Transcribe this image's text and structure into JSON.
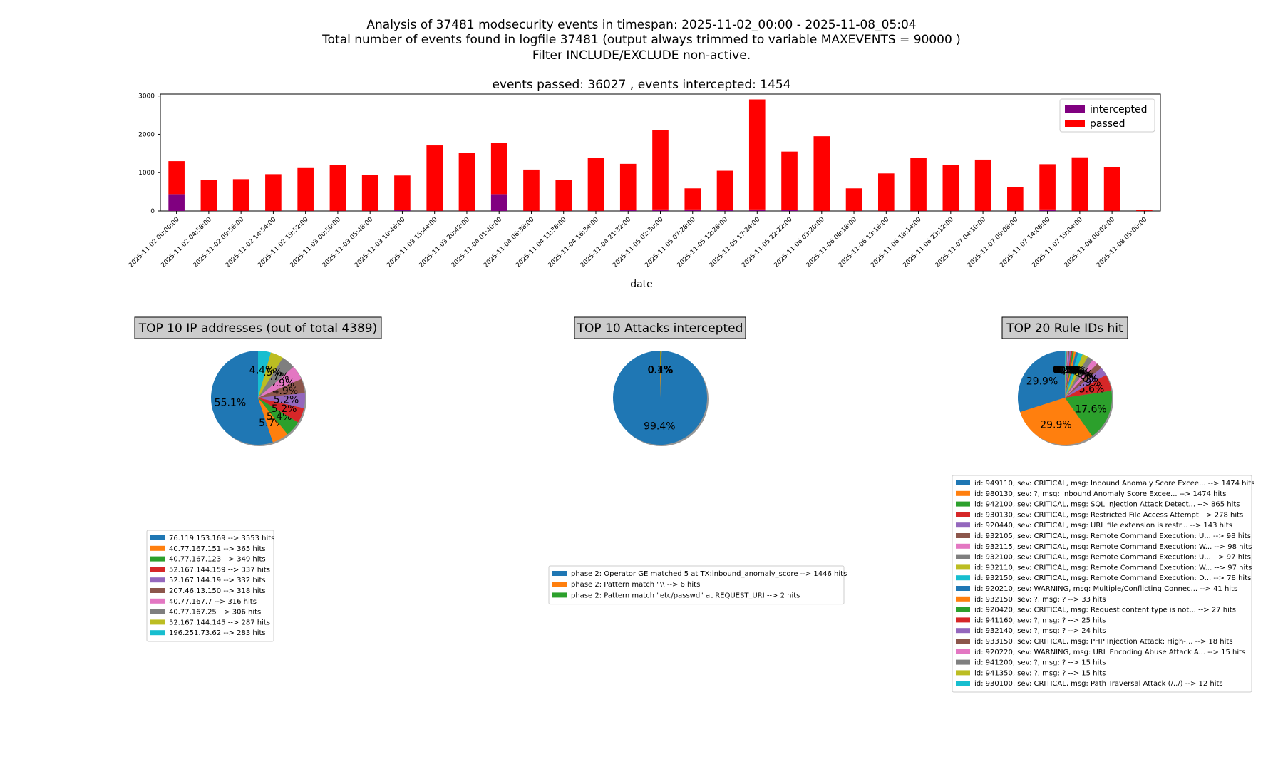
{
  "header": {
    "line1": "Analysis of 37481 modsecurity events in timespan: 2025-11-02_00:00 - 2025-11-08_05:04",
    "line2": "Total number of events found in logfile 37481 (output always trimmed to variable MAXEVENTS = 90000 )",
    "line3": "Filter INCLUDE/EXCLUDE non-active."
  },
  "colors": {
    "passed": "#ff0000",
    "intercepted": "#800080",
    "palette": [
      "#1f77b4",
      "#ff7f0e",
      "#2ca02c",
      "#d62728",
      "#9467bd",
      "#8c564b",
      "#e377c2",
      "#7f7f7f",
      "#bcbd22",
      "#17becf"
    ]
  },
  "chart_data": [
    {
      "type": "bar",
      "stacked": true,
      "title": "events passed: 36027 , events intercepted: 1454",
      "xlabel": "date",
      "ylabel": "",
      "ylim": [
        0,
        3050
      ],
      "yticks": [
        0,
        1000,
        2000,
        3000
      ],
      "legend": "top-right",
      "categories": [
        "2025-11-02 00:00:00",
        "2025-11-02 04:58:00",
        "2025-11-02 09:56:00",
        "2025-11-02 14:54:00",
        "2025-11-02 19:52:00",
        "2025-11-03 00:50:00",
        "2025-11-03 05:48:00",
        "2025-11-03 10:46:00",
        "2025-11-03 15:44:00",
        "2025-11-03 20:42:00",
        "2025-11-04 01:40:00",
        "2025-11-04 06:38:00",
        "2025-11-04 11:36:00",
        "2025-11-04 16:34:00",
        "2025-11-04 21:32:00",
        "2025-11-05 02:30:00",
        "2025-11-05 07:28:00",
        "2025-11-05 12:26:00",
        "2025-11-05 17:24:00",
        "2025-11-05 22:22:00",
        "2025-11-06 03:20:00",
        "2025-11-06 08:18:00",
        "2025-11-06 13:16:00",
        "2025-11-06 18:14:00",
        "2025-11-06 23:12:00",
        "2025-11-07 04:10:00",
        "2025-11-07 09:08:00",
        "2025-11-07 14:06:00",
        "2025-11-07 19:04:00",
        "2025-11-08 00:02:00",
        "2025-11-08 05:00:00"
      ],
      "series": [
        {
          "name": "intercepted",
          "values": [
            440,
            5,
            5,
            5,
            5,
            5,
            5,
            20,
            5,
            5,
            440,
            5,
            5,
            5,
            20,
            40,
            40,
            20,
            40,
            20,
            5,
            5,
            5,
            5,
            5,
            5,
            5,
            40,
            5,
            5,
            2
          ]
        },
        {
          "name": "passed",
          "values": [
            860,
            795,
            825,
            955,
            1115,
            1195,
            925,
            905,
            1705,
            1515,
            1335,
            1075,
            805,
            1375,
            1210,
            2080,
            550,
            1030,
            2870,
            1530,
            1945,
            585,
            975,
            1375,
            1195,
            1335,
            615,
            1180,
            1395,
            1145,
            30
          ]
        }
      ]
    },
    {
      "type": "pie",
      "title": "TOP 10 IP addresses (out of total 4389)",
      "labels": [
        "76.119.153.169 --> 3553 hits",
        "40.77.167.151 --> 365 hits",
        "40.77.167.123 --> 349 hits",
        "52.167.144.159 --> 337 hits",
        "52.167.144.19 --> 332 hits",
        "207.46.13.150 --> 318 hits",
        "40.77.167.7 --> 316 hits",
        "40.77.167.25 --> 306 hits",
        "52.167.144.145 --> 287 hits",
        "196.251.73.62 --> 283 hits"
      ],
      "values": [
        3553,
        365,
        349,
        337,
        332,
        318,
        316,
        306,
        287,
        283
      ],
      "pct_labels": [
        "55.1%",
        "5.7%",
        "5.4%",
        "5.2%",
        "5.2%",
        "4.9%",
        "4.9%",
        "4.7%",
        "4.5%",
        "4.4%"
      ]
    },
    {
      "type": "pie",
      "title": "TOP 10 Attacks intercepted",
      "labels": [
        "phase 2: Operator GE matched 5 at TX:inbound_anomaly_score --> 1446 hits",
        "phase 2: Pattern match \"\\\\ --> 6 hits",
        "phase 2: Pattern match \"etc/passwd\" at REQUEST_URI --> 2 hits"
      ],
      "values": [
        1446,
        6,
        2
      ],
      "pct_labels": [
        "99.4%",
        "0.4%",
        "0.1%"
      ]
    },
    {
      "type": "pie",
      "title": "TOP 20 Rule IDs hit",
      "labels": [
        "id: 949110, sev: CRITICAL, msg: Inbound Anomaly Score Excee... --> 1474 hits",
        "id: 980130, sev: ?, msg: Inbound Anomaly Score Excee... --> 1474 hits",
        "id: 942100, sev: CRITICAL, msg: SQL Injection Attack Detect... --> 865 hits",
        "id: 930130, sev: CRITICAL, msg: Restricted File Access Attempt --> 278 hits",
        "id: 920440, sev: CRITICAL, msg: URL file extension is restr... --> 143 hits",
        "id: 932105, sev: CRITICAL, msg: Remote Command Execution: U... --> 98 hits",
        "id: 932115, sev: CRITICAL, msg: Remote Command Execution: W... --> 98 hits",
        "id: 932100, sev: CRITICAL, msg: Remote Command Execution: U... --> 97 hits",
        "id: 932110, sev: CRITICAL, msg: Remote Command Execution: W... --> 97 hits",
        "id: 932150, sev: CRITICAL, msg: Remote Command Execution: D... --> 78 hits",
        "id: 920210, sev: WARNING, msg: Multiple/Conflicting Connec... --> 41 hits",
        "id: 932150, sev: ?, msg: ? --> 33 hits",
        "id: 920420, sev: CRITICAL, msg: Request content type is not... --> 27 hits",
        "id: 941160, sev: ?, msg: ? --> 25 hits",
        "id: 932140, sev: ?, msg: ? --> 24 hits",
        "id: 933150, sev: CRITICAL, msg: PHP Injection Attack: High-... --> 18 hits",
        "id: 920220, sev: WARNING, msg: URL Encoding Abuse Attack A... --> 15 hits",
        "id: 941200, sev: ?, msg: ? --> 15 hits",
        "id: 941350, sev: ?, msg: ? --> 15 hits",
        "id: 930100, sev: CRITICAL, msg: Path Traversal Attack (/../) --> 12 hits"
      ],
      "values": [
        1474,
        1474,
        865,
        278,
        143,
        98,
        98,
        97,
        97,
        78,
        41,
        33,
        27,
        25,
        24,
        18,
        15,
        15,
        15,
        12
      ],
      "pct_labels": [
        "29.9%",
        "29.9%",
        "17.6%",
        "5.6%",
        "2.9%",
        "2.0%",
        "2.0%",
        "2.0%",
        "2.0%",
        "1.6%",
        "0.8%",
        "0.7%",
        "0.5%",
        "0.5%",
        "0.5%",
        "0.4%",
        "0.3%",
        "0.3%",
        "0.3%",
        "0.2%"
      ]
    }
  ]
}
